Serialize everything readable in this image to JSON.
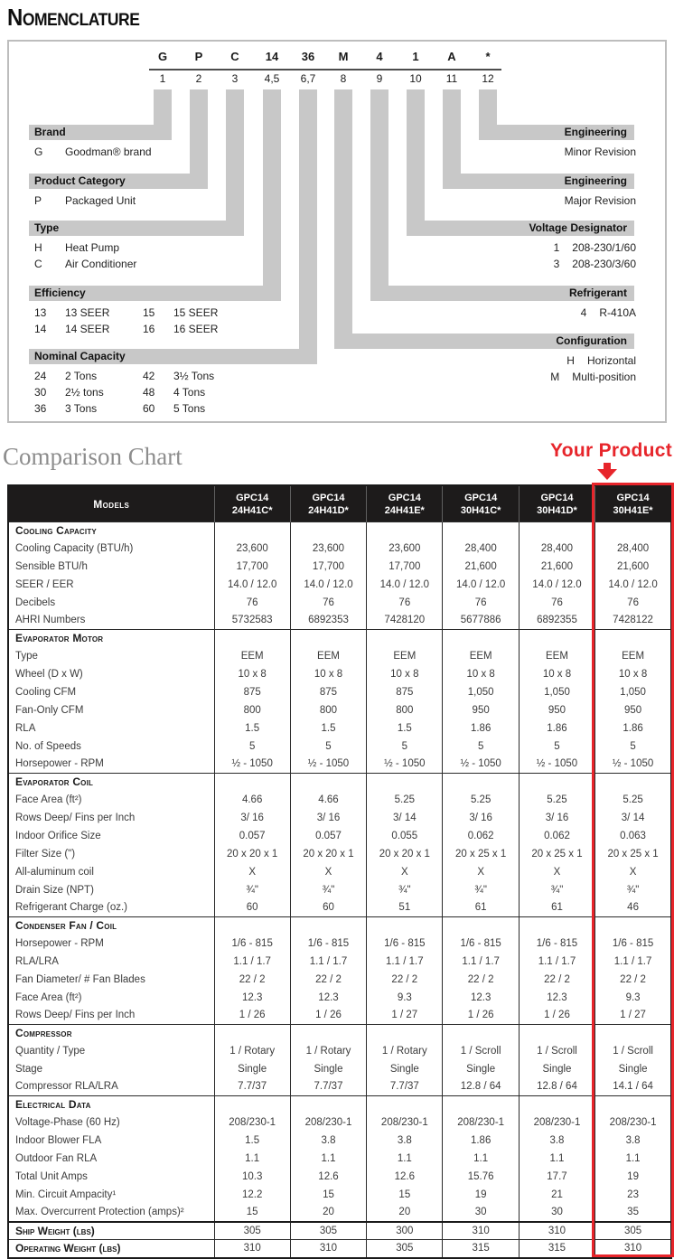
{
  "colors": {
    "accent_red": "#e7252b",
    "bar_gray": "#c8c8c8",
    "header_black": "#1d1b1b",
    "title_gray": "#8d8d8d"
  },
  "nomenclature": {
    "title": "Nomenclature",
    "code_chars": [
      {
        "c": "G",
        "p": "1"
      },
      {
        "c": "P",
        "p": "2"
      },
      {
        "c": "C",
        "p": "3"
      },
      {
        "c": "14",
        "p": "4,5"
      },
      {
        "c": "36",
        "p": "6,7"
      },
      {
        "c": "M",
        "p": "8"
      },
      {
        "c": "4",
        "p": "9"
      },
      {
        "c": "1",
        "p": "10"
      },
      {
        "c": "A",
        "p": "11"
      },
      {
        "c": "*",
        "p": "12"
      }
    ],
    "left_groups": [
      {
        "label": "Brand",
        "cols": 1,
        "entries": [
          [
            "G",
            "Goodman® brand"
          ]
        ]
      },
      {
        "label": "Product Category",
        "cols": 1,
        "entries": [
          [
            "P",
            "Packaged Unit"
          ]
        ]
      },
      {
        "label": "Type",
        "cols": 1,
        "entries": [
          [
            "H",
            "Heat Pump"
          ],
          [
            "C",
            "Air Conditioner"
          ]
        ]
      },
      {
        "label": "Efficiency",
        "cols": 2,
        "entries": [
          [
            "13",
            "13 SEER"
          ],
          [
            "14",
            "14 SEER"
          ],
          [
            "15",
            "15 SEER"
          ],
          [
            "16",
            "16 SEER"
          ]
        ]
      },
      {
        "label": "Nominal Capacity",
        "cols": 2,
        "entries": [
          [
            "24",
            "2 Tons"
          ],
          [
            "30",
            "2½ tons"
          ],
          [
            "36",
            "3 Tons"
          ],
          [
            "42",
            "3½ Tons"
          ],
          [
            "48",
            "4 Tons"
          ],
          [
            "60",
            "5 Tons"
          ]
        ]
      }
    ],
    "right_groups": [
      {
        "label": "Engineering",
        "entries": [
          [
            "",
            "Minor Revision"
          ]
        ]
      },
      {
        "label": "Engineering",
        "entries": [
          [
            "",
            "Major Revision"
          ]
        ]
      },
      {
        "label": "Voltage Designator",
        "entries": [
          [
            "1",
            "208-230/1/60"
          ],
          [
            "3",
            "208-230/3/60"
          ]
        ]
      },
      {
        "label": "Refrigerant",
        "entries": [
          [
            "4",
            "R-410A"
          ]
        ]
      },
      {
        "label": "Configuration",
        "entries": [
          [
            "H",
            "Horizontal"
          ],
          [
            "M",
            "Multi-position"
          ]
        ]
      }
    ]
  },
  "comparison": {
    "title": "Comparison Chart",
    "your_product_label": "Your Product",
    "models_header": "Models",
    "columns": [
      {
        "l1": "GPC14",
        "l2": "24H41C*"
      },
      {
        "l1": "GPC14",
        "l2": "24H41D*"
      },
      {
        "l1": "GPC14",
        "l2": "24H41E*"
      },
      {
        "l1": "GPC14",
        "l2": "30H41C*"
      },
      {
        "l1": "GPC14",
        "l2": "30H41D*"
      },
      {
        "l1": "GPC14",
        "l2": "30H41E*"
      }
    ],
    "highlighted_column": "GPC14 30H41E*",
    "sections": [
      {
        "header": "Cooling Capacity",
        "rows": [
          {
            "label": "Cooling Capacity (BTU/h)",
            "values": [
              "23,600",
              "23,600",
              "23,600",
              "28,400",
              "28,400",
              "28,400"
            ]
          },
          {
            "label": "Sensible BTU/h",
            "values": [
              "17,700",
              "17,700",
              "17,700",
              "21,600",
              "21,600",
              "21,600"
            ]
          },
          {
            "label": "SEER / EER",
            "values": [
              "14.0 / 12.0",
              "14.0 / 12.0",
              "14.0 / 12.0",
              "14.0 / 12.0",
              "14.0 / 12.0",
              "14.0 / 12.0"
            ]
          },
          {
            "label": "Decibels",
            "values": [
              "76",
              "76",
              "76",
              "76",
              "76",
              "76"
            ]
          },
          {
            "label": "AHRI Numbers",
            "values": [
              "5732583",
              "6892353",
              "7428120",
              "5677886",
              "6892355",
              "7428122"
            ]
          }
        ]
      },
      {
        "header": "Evaporator Motor",
        "rows": [
          {
            "label": "Type",
            "values": [
              "EEM",
              "EEM",
              "EEM",
              "EEM",
              "EEM",
              "EEM"
            ]
          },
          {
            "label": "Wheel (D x W)",
            "values": [
              "10 x 8",
              "10 x 8",
              "10 x 8",
              "10 x 8",
              "10 x 8",
              "10 x 8"
            ]
          },
          {
            "label": "Cooling CFM",
            "values": [
              "875",
              "875",
              "875",
              "1,050",
              "1,050",
              "1,050"
            ]
          },
          {
            "label": "Fan-Only CFM",
            "values": [
              "800",
              "800",
              "800",
              "950",
              "950",
              "950"
            ]
          },
          {
            "label": "RLA",
            "values": [
              "1.5",
              "1.5",
              "1.5",
              "1.86",
              "1.86",
              "1.86"
            ]
          },
          {
            "label": "No. of Speeds",
            "values": [
              "5",
              "5",
              "5",
              "5",
              "5",
              "5"
            ]
          },
          {
            "label": "Horsepower - RPM",
            "values": [
              "½ - 1050",
              "½ - 1050",
              "½ - 1050",
              "½ - 1050",
              "½ - 1050",
              "½ - 1050"
            ]
          }
        ]
      },
      {
        "header": "Evaporator Coil",
        "rows": [
          {
            "label": "Face Area (ft²)",
            "values": [
              "4.66",
              "4.66",
              "5.25",
              "5.25",
              "5.25",
              "5.25"
            ]
          },
          {
            "label": "Rows Deep/ Fins per Inch",
            "values": [
              "3/ 16",
              "3/ 16",
              "3/ 14",
              "3/ 16",
              "3/ 16",
              "3/ 14"
            ]
          },
          {
            "label": "Indoor Orifice Size",
            "values": [
              "0.057",
              "0.057",
              "0.055",
              "0.062",
              "0.062",
              "0.063"
            ]
          },
          {
            "label": "Filter Size (\")",
            "values": [
              "20 x 20 x 1",
              "20 x 20 x 1",
              "20 x 20 x 1",
              "20 x 25 x 1",
              "20 x 25 x 1",
              "20 x 25 x 1"
            ]
          },
          {
            "label": "All-aluminum coil",
            "values": [
              "X",
              "X",
              "X",
              "X",
              "X",
              "X"
            ]
          },
          {
            "label": "Drain Size (NPT)",
            "values": [
              "¾\"",
              "¾\"",
              "¾\"",
              "¾\"",
              "¾\"",
              "¾\""
            ]
          },
          {
            "label": "Refrigerant Charge (oz.)",
            "values": [
              "60",
              "60",
              "51",
              "61",
              "61",
              "46"
            ]
          }
        ]
      },
      {
        "header": "Condenser Fan / Coil",
        "rows": [
          {
            "label": "Horsepower - RPM",
            "values": [
              "1/6 - 815",
              "1/6 - 815",
              "1/6 - 815",
              "1/6 - 815",
              "1/6 - 815",
              "1/6 - 815"
            ]
          },
          {
            "label": "RLA/LRA",
            "values": [
              "1.1 / 1.7",
              "1.1 / 1.7",
              "1.1 / 1.7",
              "1.1 / 1.7",
              "1.1 / 1.7",
              "1.1 / 1.7"
            ]
          },
          {
            "label": "Fan Diameter/ # Fan Blades",
            "values": [
              "22 / 2",
              "22 / 2",
              "22 / 2",
              "22 / 2",
              "22 / 2",
              "22 / 2"
            ]
          },
          {
            "label": "Face Area (ft²)",
            "values": [
              "12.3",
              "12.3",
              "9.3",
              "12.3",
              "12.3",
              "9.3"
            ]
          },
          {
            "label": "Rows Deep/ Fins per Inch",
            "values": [
              "1 / 26",
              "1 / 26",
              "1 / 27",
              "1 / 26",
              "1 / 26",
              "1 / 27"
            ]
          }
        ]
      },
      {
        "header": "Compressor",
        "rows": [
          {
            "label": "Quantity / Type",
            "values": [
              "1 / Rotary",
              "1 / Rotary",
              "1 / Rotary",
              "1 / Scroll",
              "1 / Scroll",
              "1 / Scroll"
            ]
          },
          {
            "label": "Stage",
            "values": [
              "Single",
              "Single",
              "Single",
              "Single",
              "Single",
              "Single"
            ]
          },
          {
            "label": "Compressor RLA/LRA",
            "values": [
              "7.7/37",
              "7.7/37",
              "7.7/37",
              "12.8 / 64",
              "12.8 / 64",
              "14.1 / 64"
            ]
          }
        ]
      },
      {
        "header": "Electrical Data",
        "rows": [
          {
            "label": "Voltage-Phase (60 Hz)",
            "values": [
              "208/230-1",
              "208/230-1",
              "208/230-1",
              "208/230-1",
              "208/230-1",
              "208/230-1"
            ]
          },
          {
            "label": "Indoor Blower FLA",
            "values": [
              "1.5",
              "3.8",
              "3.8",
              "1.86",
              "3.8",
              "3.8"
            ]
          },
          {
            "label": "Outdoor Fan RLA",
            "values": [
              "1.1",
              "1.1",
              "1.1",
              "1.1",
              "1.1",
              "1.1"
            ]
          },
          {
            "label": "Total Unit Amps",
            "values": [
              "10.3",
              "12.6",
              "12.6",
              "15.76",
              "17.7",
              "19"
            ]
          },
          {
            "label": "Min. Circuit Ampacity¹",
            "values": [
              "12.2",
              "15",
              "15",
              "19",
              "21",
              "23"
            ]
          },
          {
            "label": "Max. Overcurrent Protection (amps)²",
            "values": [
              "15",
              "20",
              "20",
              "30",
              "30",
              "35"
            ]
          }
        ]
      }
    ],
    "footer_rows": [
      {
        "label": "Ship Weight (lbs)",
        "values": [
          "305",
          "305",
          "300",
          "310",
          "310",
          "305"
        ]
      },
      {
        "label": "Operating Weight (lbs)",
        "values": [
          "310",
          "310",
          "305",
          "315",
          "315",
          "310"
        ]
      }
    ]
  }
}
